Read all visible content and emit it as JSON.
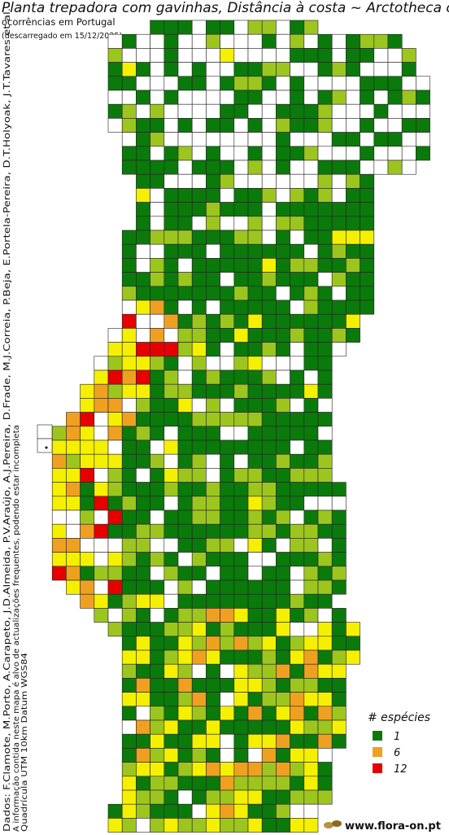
{
  "header": {
    "title": "Planta trepadora com gavinhas, Distância à costa ~ Arctotheca calendula",
    "subtitle": "ocorrências em Portugal",
    "download_note": "(descarregado em 15/12/2025)"
  },
  "credits": [
    "Dados: F.Clamote, M.Porto, A.Carapeto, J.D.Almeida, P.V.Araújo, A.J.Pereira, D.Frade, M.J.Correia, P.Beja, E.Portela-Pereira, D.T.Holyoak, J.T.Tavares et al.",
    "A informação contida neste mapa é alvo de actualizações frequentes, podendo estar incompleta",
    "Quadrícula UTM 10km Datum WGS84"
  ],
  "legend": {
    "title": "# espécies",
    "items": [
      {
        "label": 1,
        "color": "#0a7a0a"
      },
      {
        "label": 6,
        "color": "#f0a020"
      },
      {
        "label": 12,
        "color": "#e60000"
      }
    ]
  },
  "footer": {
    "site": "www.flora-on.pt"
  }
}
